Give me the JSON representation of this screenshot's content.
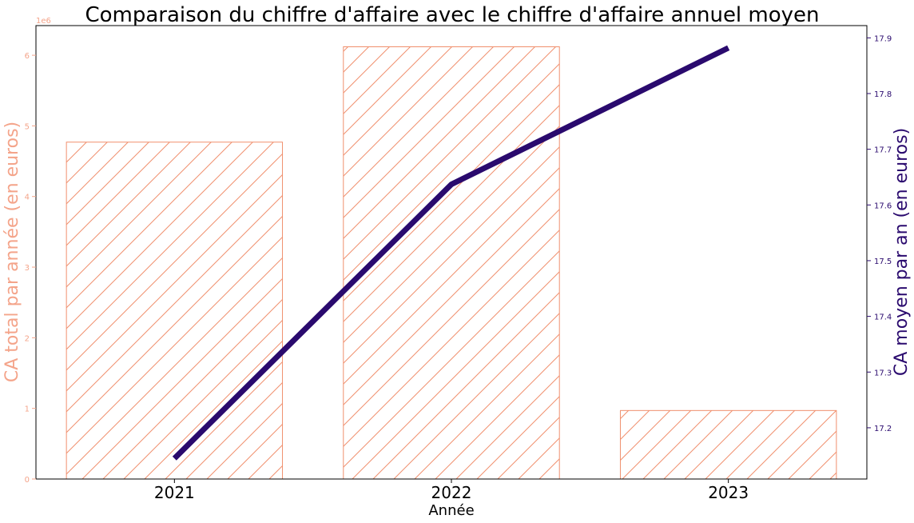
{
  "chart_data": {
    "type": "bar",
    "title": "Comparaison du chiffre d'affaire avec le chiffre d'affaire annuel moyen",
    "xlabel": "Année",
    "categories": [
      "2021",
      "2022",
      "2023"
    ],
    "left_axis": {
      "label": "CA total par année (en euros)",
      "offset_label": "1e6",
      "ylim": [
        0,
        6.42
      ],
      "ticks": [
        0,
        1,
        2,
        3,
        4,
        5,
        6
      ],
      "color": "#f4a48a"
    },
    "right_axis": {
      "label": "CA moyen par an (en euros)",
      "ylim": [
        17.108,
        17.922
      ],
      "ticks": [
        17.2,
        17.3,
        17.4,
        17.5,
        17.6,
        17.7,
        17.8,
        17.9
      ],
      "color": "#2a0a6e"
    },
    "series": [
      {
        "type": "bar",
        "axis": "left",
        "values": [
          4.77,
          6.12,
          0.97
        ],
        "color": "#f0906e",
        "hatch": "/"
      },
      {
        "type": "line",
        "axis": "right",
        "values": [
          17.145,
          17.637,
          17.882
        ],
        "color": "#2a0a6e"
      }
    ],
    "grid": false
  }
}
